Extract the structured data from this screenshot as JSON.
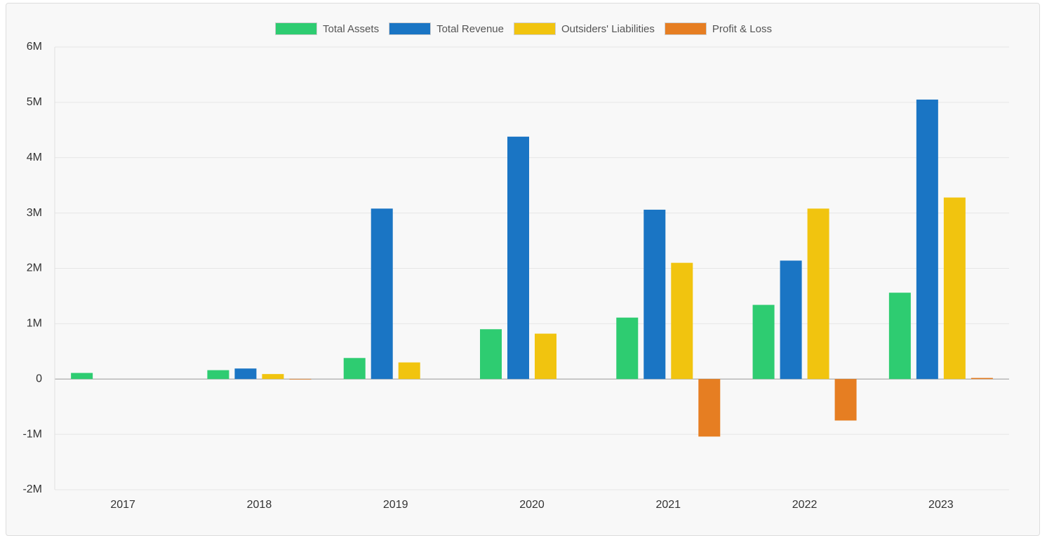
{
  "chart_data": {
    "type": "bar",
    "categories": [
      "2017",
      "2018",
      "2019",
      "2020",
      "2021",
      "2022",
      "2023"
    ],
    "series": [
      {
        "name": "Total Assets",
        "color": "#2ecc71",
        "values": [
          110000,
          160000,
          380000,
          900000,
          1110000,
          1340000,
          1560000
        ]
      },
      {
        "name": "Total Revenue",
        "color": "#1a75c4",
        "values": [
          0,
          190000,
          3080000,
          4380000,
          3060000,
          2140000,
          5050000
        ]
      },
      {
        "name": "Outsiders' Liabilities",
        "color": "#f1c40f",
        "values": [
          0,
          90000,
          300000,
          820000,
          2100000,
          3080000,
          3280000
        ]
      },
      {
        "name": "Profit & Loss",
        "color": "#e67e22",
        "values": [
          0,
          -10000,
          0,
          0,
          -1040000,
          -750000,
          20000
        ]
      }
    ],
    "ylim": [
      -2000000,
      6000000
    ],
    "yticks": [
      {
        "value": -2000000,
        "label": "-2M"
      },
      {
        "value": -1000000,
        "label": "-1M"
      },
      0,
      {
        "value": 1000000,
        "label": "1M"
      },
      {
        "value": 2000000,
        "label": "2M"
      },
      {
        "value": 3000000,
        "label": "3M"
      },
      {
        "value": 4000000,
        "label": "4M"
      },
      {
        "value": 5000000,
        "label": "5M"
      },
      {
        "value": 6000000,
        "label": "6M"
      }
    ],
    "grid": true,
    "legend": "top"
  }
}
